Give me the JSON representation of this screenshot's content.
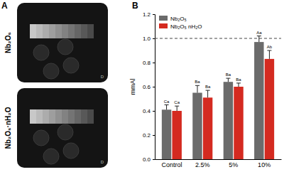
{
  "panel_a": {
    "label": "A",
    "corner_mark": "D",
    "images": [
      {
        "label": "Nb₂O₅"
      },
      {
        "label": "Nb₂O₅·nH₂O"
      }
    ]
  },
  "chart_data": {
    "type": "bar",
    "panel_label": "B",
    "y_label": "mmAl",
    "categories": [
      "Control",
      "2.5%",
      "5%",
      "10%"
    ],
    "series": [
      {
        "name": "Nb₂O₅",
        "color": "#6b6b6b",
        "values": [
          0.41,
          0.55,
          0.64,
          0.97
        ],
        "errors": [
          0.04,
          0.06,
          0.03,
          0.05
        ],
        "letters": [
          "Ca",
          "Ba",
          "Ba",
          "Aa"
        ]
      },
      {
        "name": "Nb₂O₅ nH₂O",
        "color": "#d42a20",
        "values": [
          0.4,
          0.51,
          0.6,
          0.83
        ],
        "errors": [
          0.04,
          0.06,
          0.03,
          0.07
        ],
        "letters": [
          "Ca",
          "Ba",
          "Ba",
          "Ab"
        ]
      }
    ],
    "reference_line": 1,
    "ylim": [
      0,
      1.2
    ],
    "yticks": [
      {
        "value": 0,
        "label": "0.0"
      },
      0.2,
      0.4,
      0.6,
      0.8,
      {
        "value": 1,
        "label": "1.0"
      },
      1.2
    ],
    "legend": "top-left"
  }
}
